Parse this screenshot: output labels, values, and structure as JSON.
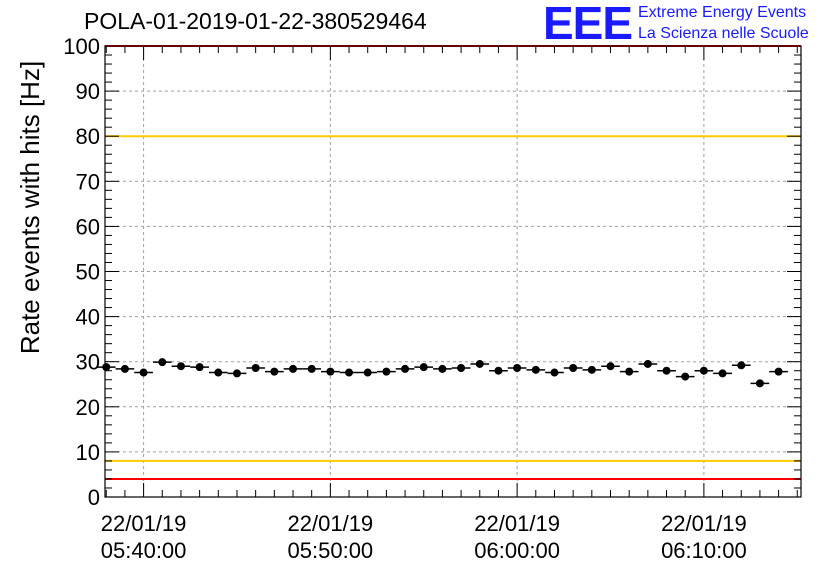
{
  "header": {
    "title": "POLA-01-2019-01-22-380529464",
    "logo_text": "EEE",
    "logo_line1": "Extreme Energy Events",
    "logo_line2": "La Scienza nelle Scuole"
  },
  "colors": {
    "logo": "#1a1aff",
    "red_line": "#ff0000",
    "yellow_line": "#ffcc00",
    "grid": "#a0a0a0",
    "points": "#000000"
  },
  "chart_data": {
    "type": "scatter",
    "title": "POLA-01-2019-01-22-380529464",
    "xlabel": "",
    "ylabel": "Rate events with hits [Hz]",
    "ylim": [
      0,
      100
    ],
    "xlim": [
      "2019-01-22 05:37:56",
      "2019-01-22 06:15:12"
    ],
    "y_ticks": [
      0,
      10,
      20,
      30,
      40,
      50,
      60,
      70,
      80,
      90,
      100
    ],
    "x_ticks": [
      {
        "x": "2019-01-22 05:40:00",
        "label_date": "22/01/19",
        "label_time": "05:40:00"
      },
      {
        "x": "2019-01-22 05:50:00",
        "label_date": "22/01/19",
        "label_time": "05:50:00"
      },
      {
        "x": "2019-01-22 06:00:00",
        "label_date": "22/01/19",
        "label_time": "06:00:00"
      },
      {
        "x": "2019-01-22 06:10:00",
        "label_date": "22/01/19",
        "label_time": "06:10:00"
      }
    ],
    "grid": true,
    "reference_lines": [
      {
        "y": 100,
        "color": "#ff0000"
      },
      {
        "y": 80,
        "color": "#ffcc00"
      },
      {
        "y": 8,
        "color": "#ffcc00"
      },
      {
        "y": 4,
        "color": "#ff0000"
      }
    ],
    "series": [
      {
        "x": [
          "2019-01-22 05:38:00",
          "2019-01-22 05:39:00",
          "2019-01-22 05:40:00",
          "2019-01-22 05:41:00",
          "2019-01-22 05:42:00",
          "2019-01-22 05:43:00",
          "2019-01-22 05:44:00",
          "2019-01-22 05:45:00",
          "2019-01-22 05:46:00",
          "2019-01-22 05:47:00",
          "2019-01-22 05:48:00",
          "2019-01-22 05:49:00",
          "2019-01-22 05:50:00",
          "2019-01-22 05:51:00",
          "2019-01-22 05:52:00",
          "2019-01-22 05:53:00",
          "2019-01-22 05:54:00",
          "2019-01-22 05:55:00",
          "2019-01-22 05:56:00",
          "2019-01-22 05:57:00",
          "2019-01-22 05:58:00",
          "2019-01-22 05:59:00",
          "2019-01-22 06:00:00",
          "2019-01-22 06:01:00",
          "2019-01-22 06:02:00",
          "2019-01-22 06:03:00",
          "2019-01-22 06:04:00",
          "2019-01-22 06:05:00",
          "2019-01-22 06:06:00",
          "2019-01-22 06:07:00",
          "2019-01-22 06:08:00",
          "2019-01-22 06:09:00",
          "2019-01-22 06:10:00",
          "2019-01-22 06:11:00",
          "2019-01-22 06:12:00",
          "2019-01-22 06:13:00",
          "2019-01-22 06:14:00"
        ],
        "y": [
          28.8,
          28.4,
          27.6,
          29.9,
          29.0,
          28.8,
          27.6,
          27.4,
          28.6,
          27.8,
          28.4,
          28.4,
          27.8,
          27.6,
          27.6,
          27.8,
          28.4,
          28.8,
          28.4,
          28.6,
          29.5,
          28.0,
          28.6,
          28.2,
          27.6,
          28.6,
          28.2,
          29.0,
          27.8,
          29.5,
          28.0,
          26.7,
          28.0,
          27.4,
          29.2,
          25.2,
          27.8
        ],
        "xerr_minutes": 0.5
      }
    ]
  }
}
